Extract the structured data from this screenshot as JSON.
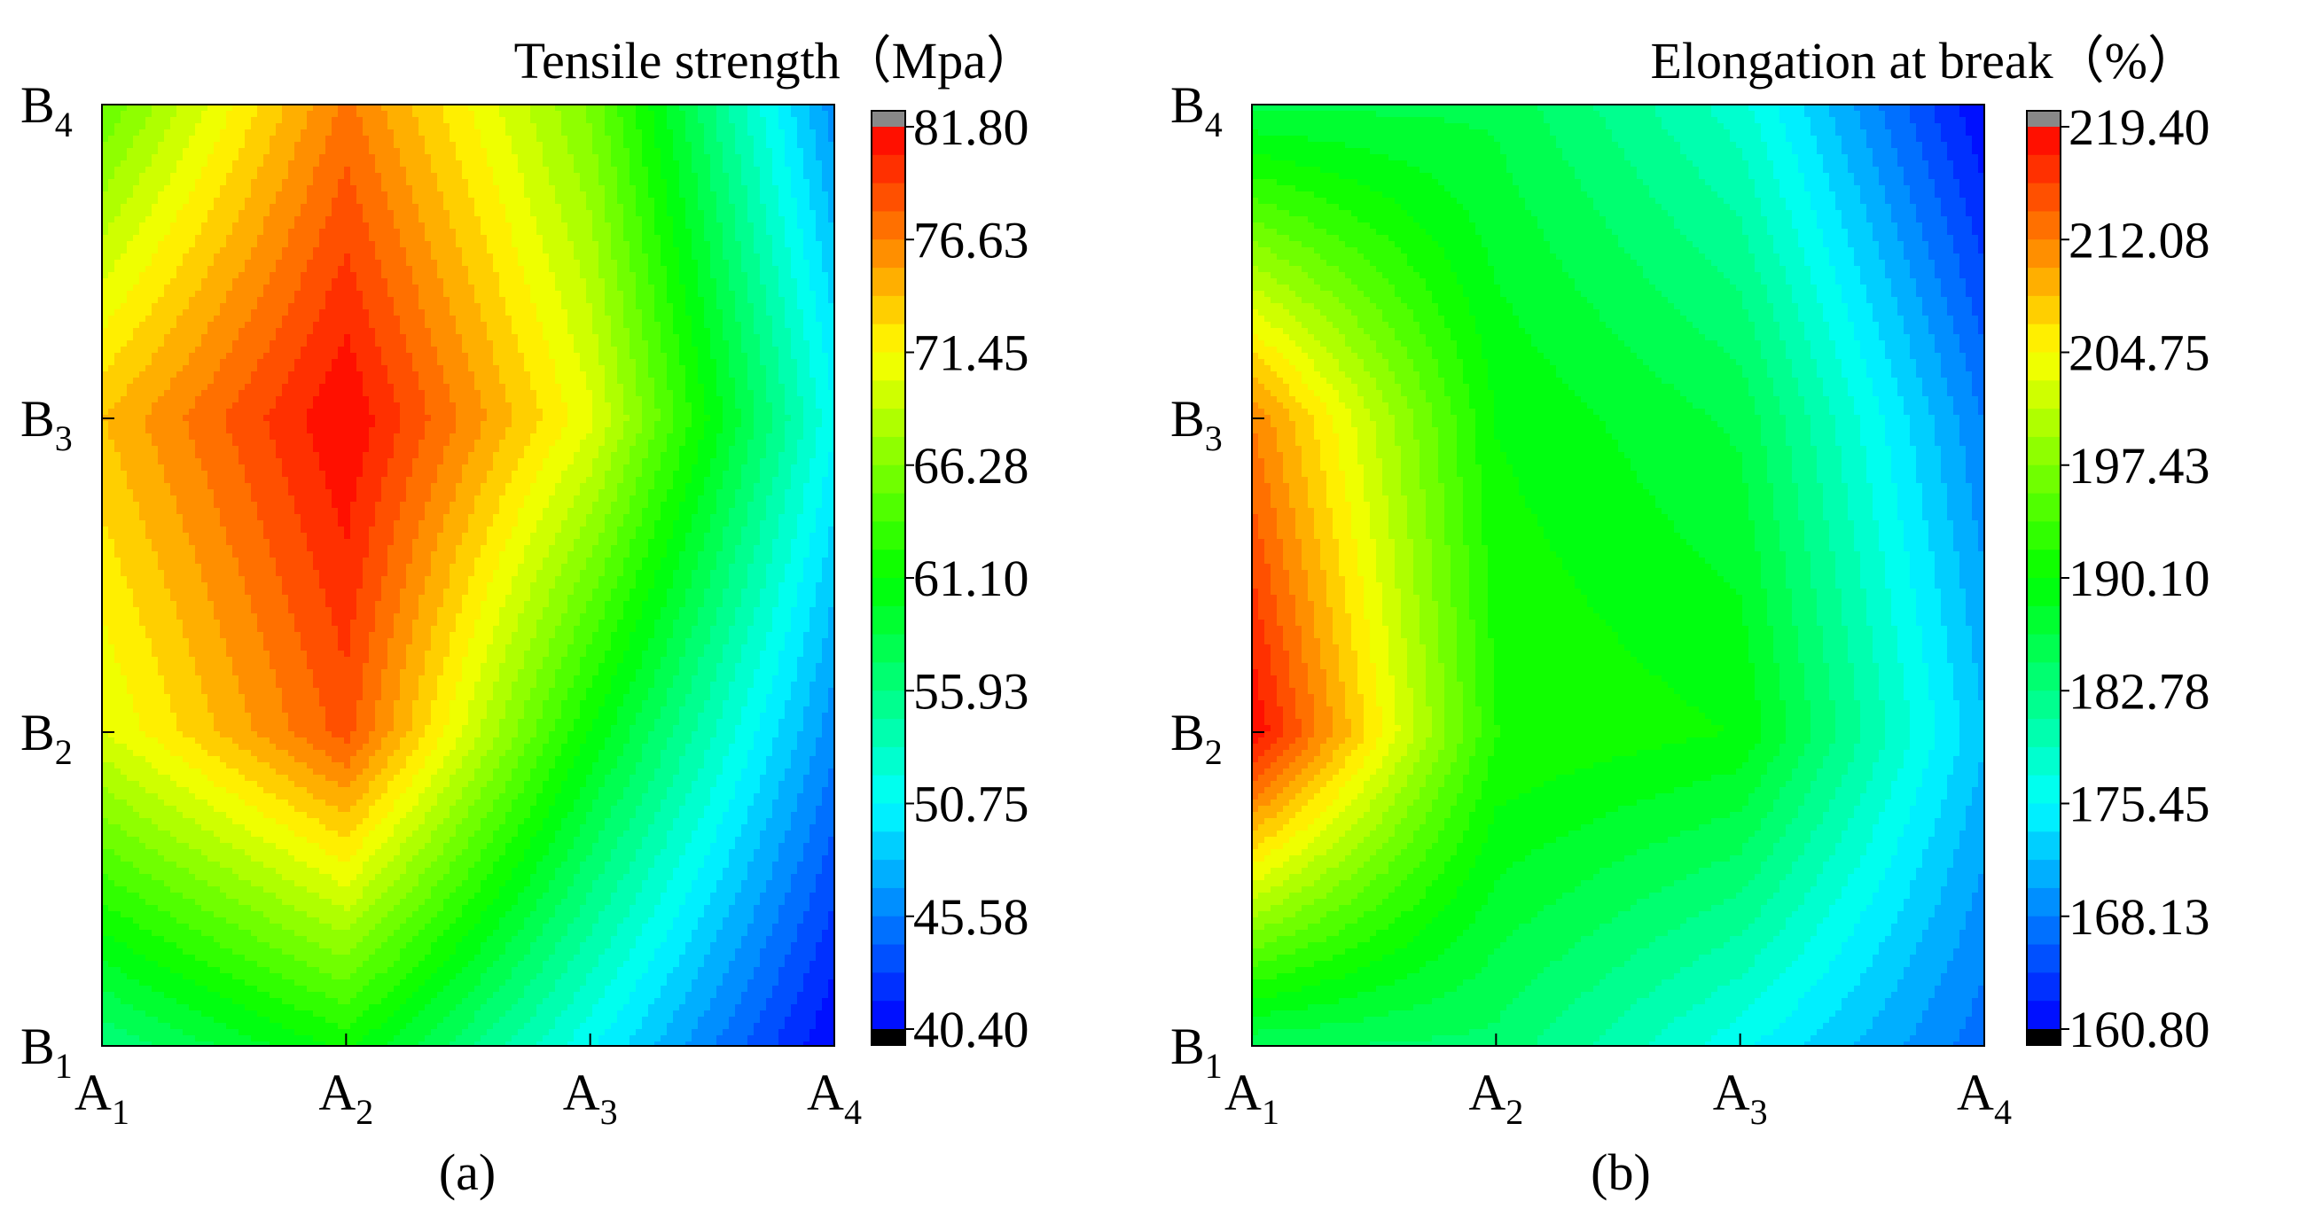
{
  "chart_data": [
    {
      "panel": "(a)",
      "type": "heatmap",
      "title": "Tensile strength（Mpa）",
      "x_ticks": [
        {
          "main": "A",
          "sub": "1"
        },
        {
          "main": "A",
          "sub": "2"
        },
        {
          "main": "A",
          "sub": "3"
        },
        {
          "main": "A",
          "sub": "4"
        }
      ],
      "y_ticks": [
        {
          "main": "B",
          "sub": "1"
        },
        {
          "main": "B",
          "sub": "2"
        },
        {
          "main": "B",
          "sub": "3"
        },
        {
          "main": "B",
          "sub": "4"
        }
      ],
      "z_rows_from_B1": [
        [
          56.0,
          61.5,
          51.0,
          40.4
        ],
        [
          70.0,
          78.5,
          61.0,
          46.0
        ],
        [
          74.0,
          81.8,
          70.5,
          51.0
        ],
        [
          65.0,
          77.0,
          66.0,
          46.0
        ]
      ],
      "colorbar": {
        "min": 40.4,
        "max": 81.8,
        "levels": 32,
        "tick_labels": [
          "81.80",
          "76.63",
          "71.45",
          "66.28",
          "61.10",
          "55.93",
          "50.75",
          "45.58",
          "40.40"
        ],
        "over_color": "#888888",
        "under_color": "#000000"
      },
      "colormap": [
        "#0000ff",
        "#00ffff",
        "#00ff00",
        "#ffff00",
        "#ff0000"
      ]
    },
    {
      "panel": "(b)",
      "type": "heatmap",
      "title": "Elongation at break（%）",
      "x_ticks": [
        {
          "main": "A",
          "sub": "1"
        },
        {
          "main": "A",
          "sub": "2"
        },
        {
          "main": "A",
          "sub": "3"
        },
        {
          "main": "A",
          "sub": "4"
        }
      ],
      "y_ticks": [
        {
          "main": "B",
          "sub": "1"
        },
        {
          "main": "B",
          "sub": "2"
        },
        {
          "main": "B",
          "sub": "3"
        },
        {
          "main": "B",
          "sub": "4"
        }
      ],
      "z_rows_from_B1": [
        [
          185.0,
          184.0,
          176.0,
          167.0
        ],
        [
          219.4,
          192.0,
          190.0,
          172.0
        ],
        [
          212.0,
          190.0,
          186.0,
          168.0
        ],
        [
          186.0,
          186.0,
          178.0,
          160.8
        ]
      ],
      "colorbar": {
        "min": 160.8,
        "max": 219.4,
        "levels": 32,
        "tick_labels": [
          "219.40",
          "212.08",
          "204.75",
          "197.43",
          "190.10",
          "182.78",
          "175.45",
          "168.13",
          "160.80"
        ],
        "over_color": "#888888",
        "under_color": "#000000"
      },
      "colormap": [
        "#0000ff",
        "#00ffff",
        "#00ff00",
        "#ffff00",
        "#ff0000"
      ]
    }
  ]
}
